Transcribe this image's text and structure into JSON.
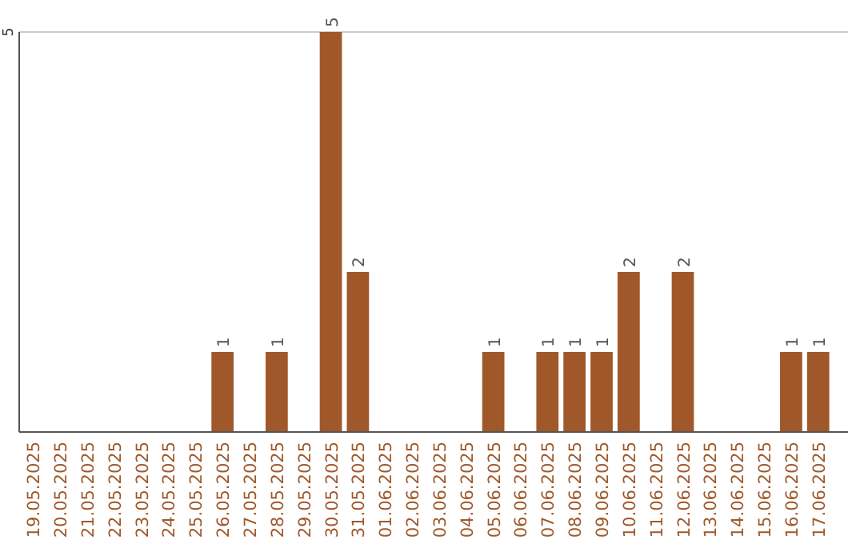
{
  "chart_data": {
    "type": "bar",
    "categories": [
      "19.05.2025",
      "20.05.2025",
      "21.05.2025",
      "22.05.2025",
      "23.05.2025",
      "24.05.2025",
      "25.05.2025",
      "26.05.2025",
      "27.05.2025",
      "28.05.2025",
      "29.05.2025",
      "30.05.2025",
      "31.05.2025",
      "01.06.2025",
      "02.06.2025",
      "03.06.2025",
      "04.06.2025",
      "05.06.2025",
      "06.06.2025",
      "07.06.2025",
      "08.06.2025",
      "09.06.2025",
      "10.06.2025",
      "11.06.2025",
      "12.06.2025",
      "13.06.2025",
      "14.06.2025",
      "15.06.2025",
      "16.06.2025",
      "17.06.2025"
    ],
    "values": [
      0,
      0,
      0,
      0,
      0,
      0,
      0,
      1,
      0,
      1,
      0,
      5,
      2,
      0,
      0,
      0,
      0,
      1,
      0,
      1,
      1,
      1,
      2,
      0,
      2,
      0,
      0,
      0,
      1,
      1
    ],
    "value_labels": [
      null,
      null,
      null,
      null,
      null,
      null,
      null,
      "1",
      null,
      "1",
      null,
      "5",
      "2",
      null,
      null,
      null,
      null,
      "1",
      null,
      "1",
      "1",
      "1",
      "2",
      null,
      "2",
      null,
      null,
      null,
      "1",
      "1"
    ],
    "color": "#a0582a",
    "ylim": [
      0,
      5
    ],
    "yticks": [
      5
    ]
  }
}
